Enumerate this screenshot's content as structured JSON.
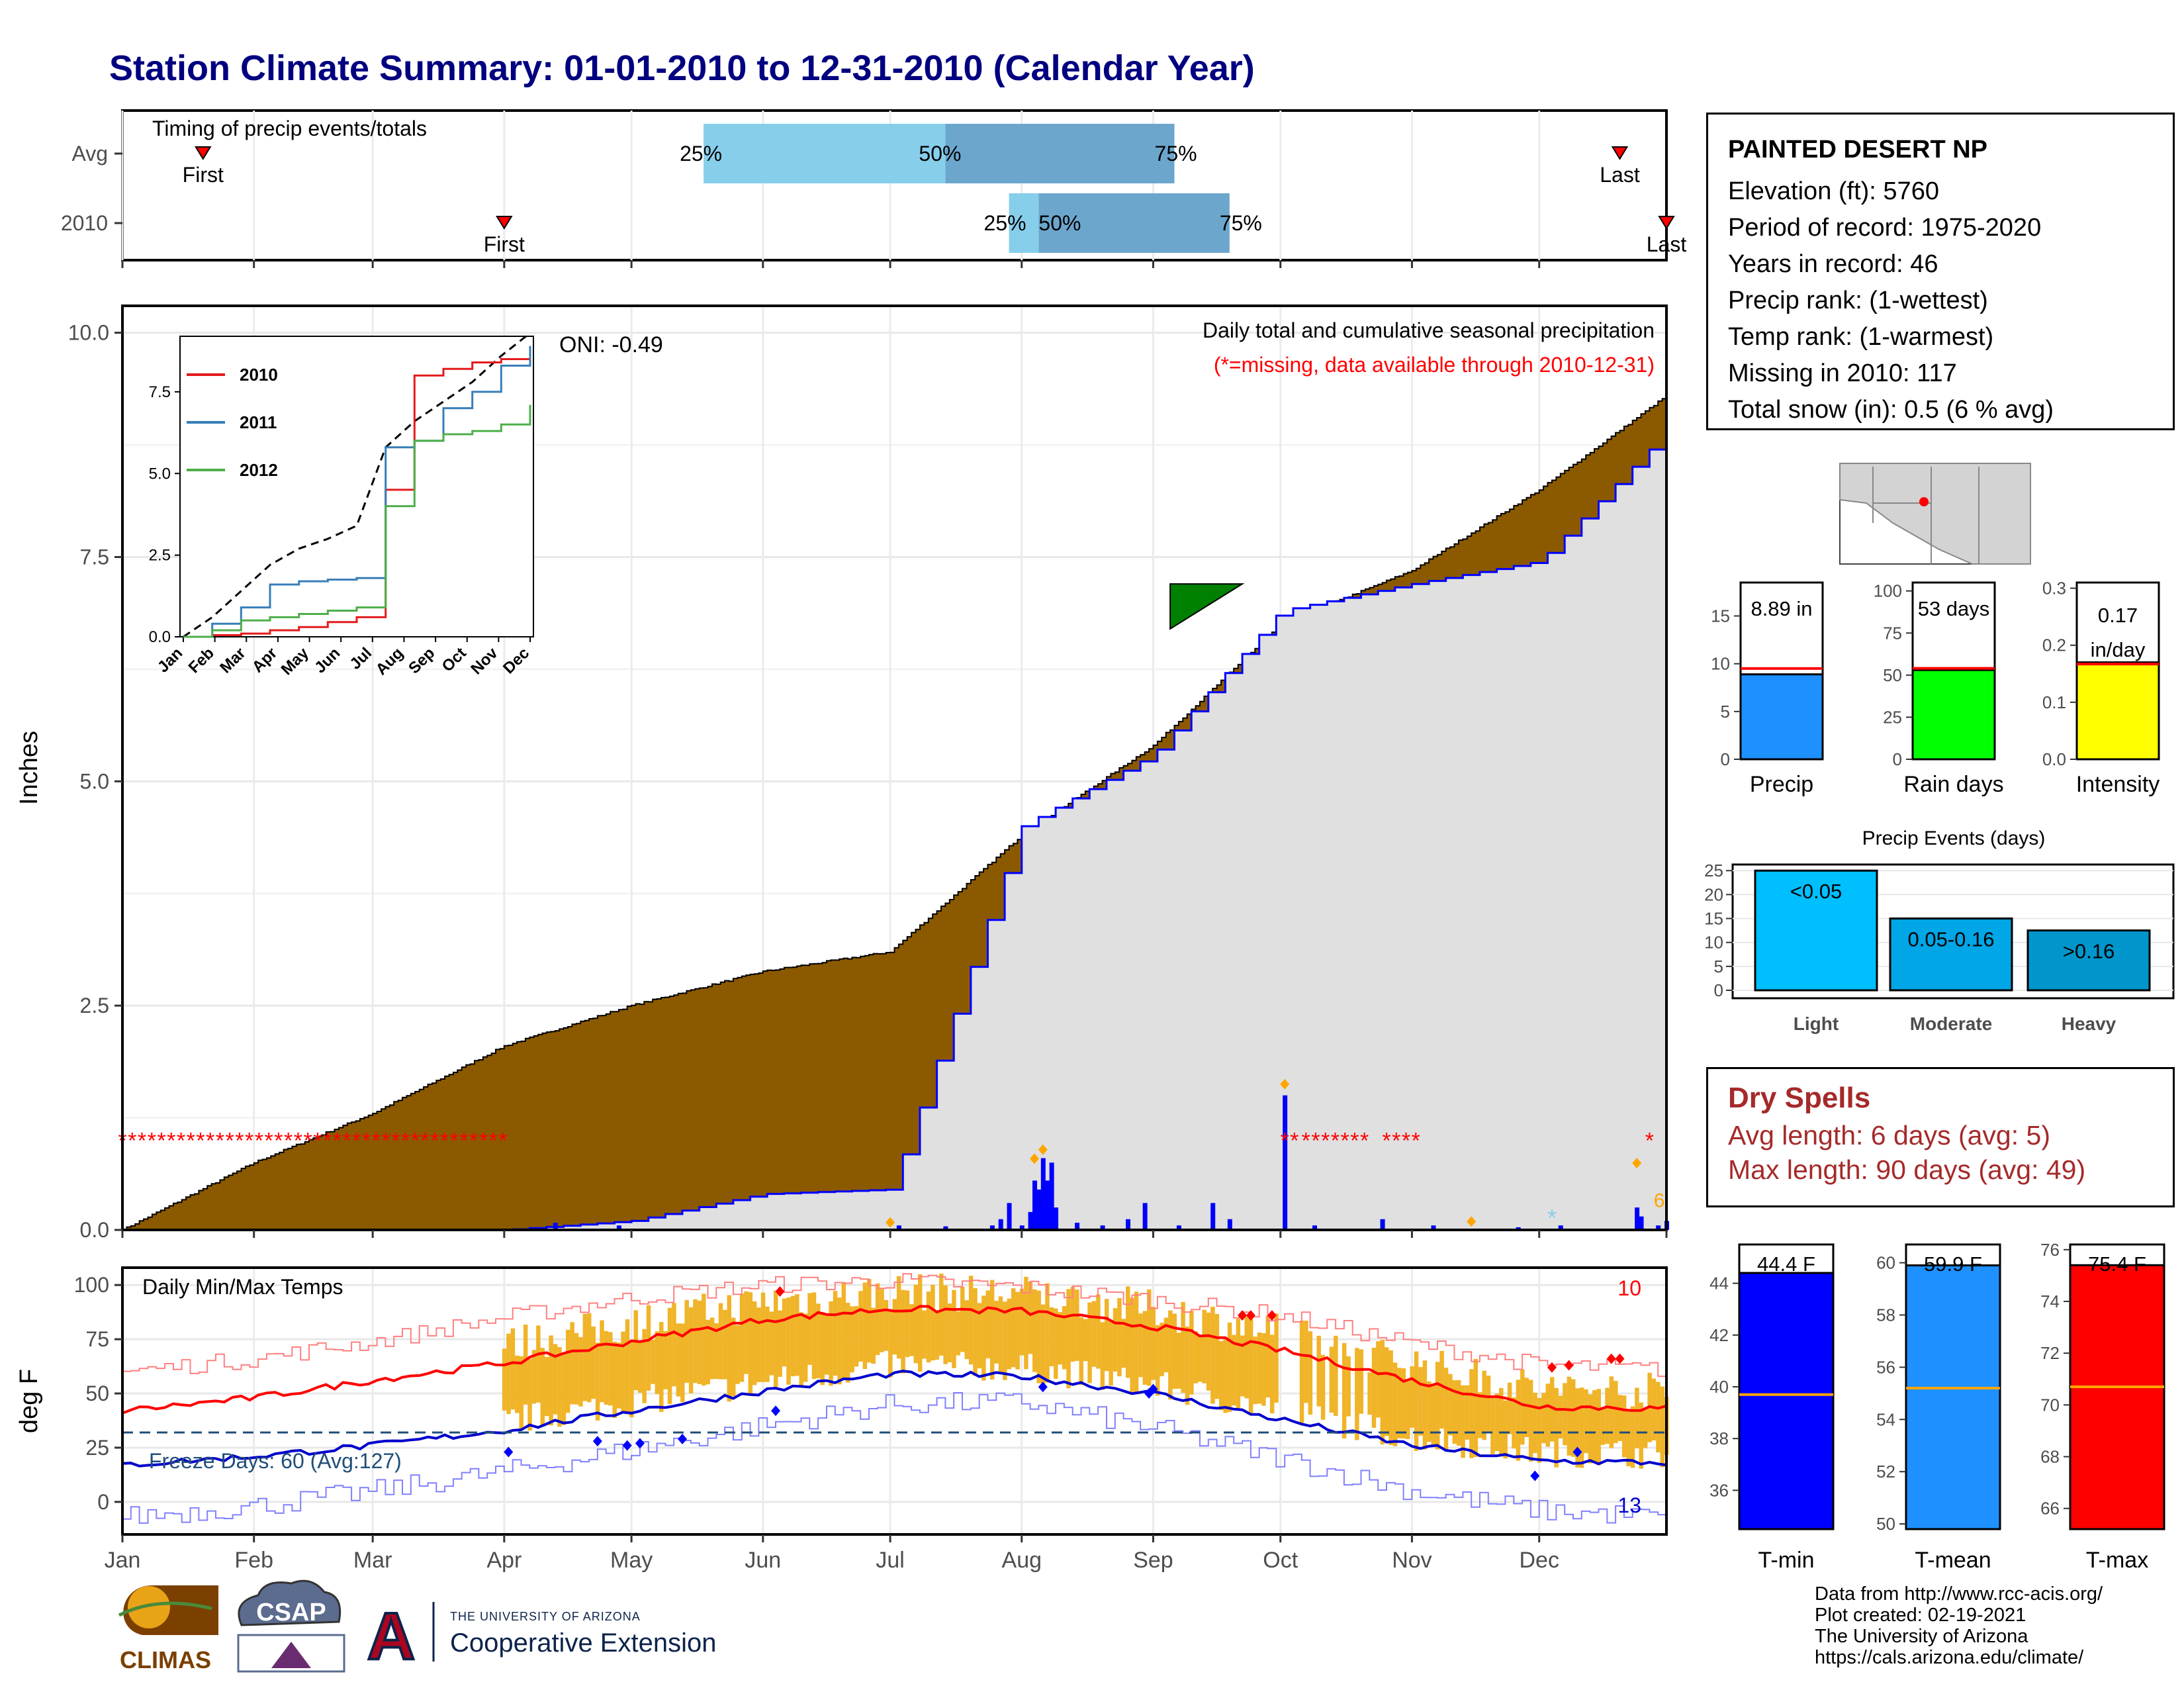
{
  "title": "Station Climate Summary: 01-01-2010 to 12-31-2010 (Calendar Year)",
  "timing": {
    "label": "Timing of precip events/totals",
    "row_labels": [
      "Avg",
      "2010"
    ],
    "first": "First",
    "last": "Last",
    "p25": "25%",
    "p50": "50%",
    "p75": "75%",
    "avg": {
      "first_doy": 20,
      "p25_doy": 138,
      "p50_doy": 195,
      "p75_doy": 249,
      "last_doy": 354
    },
    "y2010": {
      "first_doy": 91,
      "p25_doy": 210,
      "p50_doy": 217,
      "p75_doy": 262,
      "last_doy": 365
    }
  },
  "precip": {
    "ylabel": "Inches",
    "yticks": [
      "0.0",
      "2.5",
      "5.0",
      "7.5",
      "10.0"
    ],
    "oni": "ONI: -0.49",
    "annot1": "Daily total and cumulative seasonal precipitation",
    "annot2": "(*=missing, data available through 2010-12-31)",
    "count_label": "6",
    "missing_marker": "*"
  },
  "inset": {
    "legend": [
      "2010",
      "2011",
      "2012"
    ],
    "yticks": [
      "0.0",
      "2.5",
      "5.0",
      "7.5"
    ],
    "xticks": [
      "Jan",
      "Feb",
      "Mar",
      "Apr",
      "May",
      "Jun",
      "Jul",
      "Aug",
      "Sep",
      "Oct",
      "Nov",
      "Dec"
    ]
  },
  "temps": {
    "ylabel": "deg F",
    "label": "Daily Min/Max Temps",
    "yticks": [
      "0",
      "25",
      "50",
      "75",
      "100"
    ],
    "freeze": "Freeze Days: 60 (Avg:127)",
    "count_hi": "10",
    "count_lo": "13"
  },
  "months": [
    "Jan",
    "Feb",
    "Mar",
    "Apr",
    "May",
    "Jun",
    "Jul",
    "Aug",
    "Sep",
    "Oct",
    "Nov",
    "Dec"
  ],
  "station": {
    "name": "PAINTED DESERT NP",
    "lines": [
      "Elevation (ft): 5760",
      "Period of record: 1975-2020",
      "Years in record: 46",
      "Precip rank:  (1-wettest)",
      "Temp rank:  (1-warmest)",
      "Missing in 2010: 117",
      "Total snow (in): 0.5 (6 % avg)"
    ]
  },
  "summary_bars": [
    {
      "name": "Precip",
      "label": "8.89 in",
      "value": 8.89,
      "avg": 9.5,
      "ymax": 18.5,
      "ticks": [
        "0",
        "5",
        "10",
        "15"
      ],
      "tick_vals": [
        0,
        5,
        10,
        15
      ],
      "color": "#1E90FF"
    },
    {
      "name": "Rain days",
      "label": "53 days",
      "value": 53,
      "avg": 54,
      "ymax": 105,
      "ticks": [
        "0",
        "25",
        "50",
        "75",
        "100"
      ],
      "tick_vals": [
        0,
        25,
        50,
        75,
        100
      ],
      "color": "#00FF00"
    },
    {
      "name": "Intensity",
      "label": "0.17 in/day",
      "value": 0.17,
      "avg": 0.167,
      "ymax": 0.31,
      "ticks": [
        "0.0",
        "0.1",
        "0.2",
        "0.3"
      ],
      "tick_vals": [
        0,
        0.1,
        0.2,
        0.3
      ],
      "color": "#FFFF00"
    }
  ],
  "events": {
    "title": "Precip Events (days)",
    "yticks": [
      "0",
      "5",
      "10",
      "15",
      "20",
      "25"
    ],
    "bars": [
      {
        "name": "Light",
        "label": "<0.05",
        "value": 25,
        "color": "#00BFFF"
      },
      {
        "name": "Moderate",
        "label": "0.05-0.16",
        "value": 15,
        "color": "#00A6E6"
      },
      {
        "name": "Heavy",
        "label": ">0.16",
        "value": 12.5,
        "color": "#0096CC"
      }
    ]
  },
  "dry_spells": {
    "title": "Dry Spells",
    "avg": "Avg length: 6 days (avg: 5)",
    "max": "Max length: 90 days (avg: 49)"
  },
  "temp_bars": [
    {
      "name": "T-min",
      "label": "44.4 F",
      "value": 44.4,
      "avg": 39.7,
      "ymin": 34.5,
      "ymax": 45.5,
      "ticks": [
        "36",
        "38",
        "40",
        "42",
        "44"
      ],
      "color": "#0000FF"
    },
    {
      "name": "T-mean",
      "label": "59.9 F",
      "value": 59.9,
      "avg": 55.2,
      "ymin": 49.8,
      "ymax": 60.7,
      "ticks": [
        "50",
        "52",
        "54",
        "56",
        "58",
        "60"
      ],
      "color": "#1E90FF"
    },
    {
      "name": "T-max",
      "label": "75.4 F",
      "value": 75.4,
      "avg": 70.7,
      "ymin": 65.2,
      "ymax": 76.2,
      "ticks": [
        "66",
        "68",
        "70",
        "72",
        "74",
        "76"
      ],
      "color": "#FF0000"
    }
  ],
  "credits": [
    "Data from http://www.rcc-acis.org/",
    "Plot created: 02-19-2021",
    "The University of Arizona",
    "https://cals.arizona.edu/climate/"
  ],
  "logos": {
    "climas": "CLIMAS",
    "csap": "CSAP",
    "ua_small": "THE UNIVERSITY OF ARIZONA",
    "ua_big": "Cooperative Extension",
    "ua_letter": "A"
  },
  "chart_data": [
    {
      "type": "area",
      "title": "Daily total and cumulative seasonal precipitation",
      "ylabel": "Inches",
      "ylim": [
        0,
        10
      ],
      "x": [
        "Jan",
        "Feb",
        "Mar",
        "Apr",
        "May",
        "Jun",
        "Jul",
        "Aug",
        "Sep",
        "Oct",
        "Nov",
        "Dec",
        "Dec31"
      ],
      "series": [
        {
          "name": "avg_cumulative",
          "values": [
            0.0,
            0.75,
            1.3,
            2.05,
            2.5,
            2.88,
            3.1,
            4.4,
            5.4,
            6.75,
            7.35,
            8.25,
            9.3
          ]
        },
        {
          "name": "2010_cumulative",
          "values": [
            0.0,
            0.0,
            0.0,
            0.0,
            0.1,
            0.4,
            0.45,
            4.5,
            5.3,
            6.9,
            7.2,
            7.45,
            8.89
          ]
        }
      ],
      "missing_periods": [
        "Jan 1 - Apr 1",
        "Oct 1 - Oct 31",
        "Dec 27 - Dec 31"
      ],
      "grid": true
    },
    {
      "type": "line",
      "title": "Daily Min/Max Temps",
      "ylabel": "deg F",
      "ylim": [
        -15,
        108
      ],
      "x": [
        "Jan",
        "Feb",
        "Mar",
        "Apr",
        "May",
        "Jun",
        "Jul",
        "Aug",
        "Sep",
        "Oct",
        "Nov",
        "Dec",
        "Dec31"
      ],
      "series": [
        {
          "name": "avg_max",
          "values": [
            42,
            48,
            56,
            64,
            74,
            84,
            89,
            88,
            81,
            70,
            56,
            44,
            43
          ]
        },
        {
          "name": "avg_min",
          "values": [
            17,
            21,
            26,
            33,
            42,
            51,
            59,
            58,
            50,
            38,
            26,
            19,
            18
          ]
        },
        {
          "name": "record_max",
          "values": [
            60,
            66,
            74,
            85,
            94,
            100,
            102,
            99,
            93,
            86,
            73,
            63,
            61
          ]
        },
        {
          "name": "record_min",
          "values": [
            -7,
            -2,
            5,
            14,
            24,
            35,
            45,
            46,
            34,
            20,
            5,
            -4,
            -7
          ]
        }
      ],
      "freeze_line": 32,
      "grid": true
    }
  ]
}
